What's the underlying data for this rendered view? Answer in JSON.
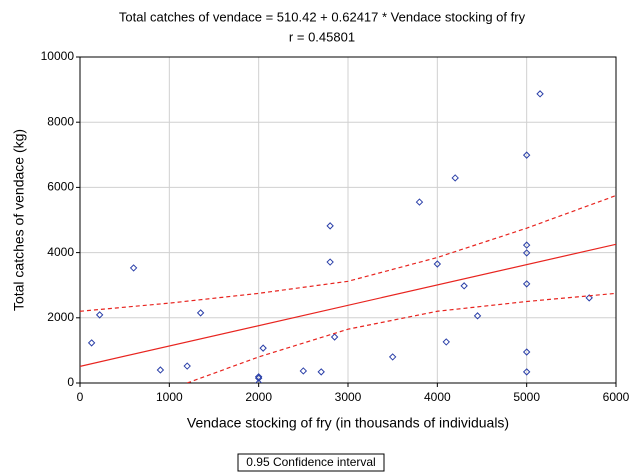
{
  "chart_data": {
    "type": "scatter",
    "title": "Total catches of vendace = 510.42 + 0.62417 * Vendace stocking of fry",
    "subtitle": "r =  0.45801",
    "x_label": "Vendace stocking of fry (in thousands of individuals)",
    "y_label": "Total catches of vendace (kg)",
    "legend": "0.95 Confidence interval",
    "xlim": [
      0,
      6000
    ],
    "ylim": [
      0,
      10000
    ],
    "xticks": [
      0,
      1000,
      2000,
      3000,
      4000,
      5000,
      6000
    ],
    "yticks": [
      0,
      2000,
      4000,
      6000,
      8000,
      10000
    ],
    "grid": true,
    "series": [
      {
        "kind": "points",
        "marker": "diamond",
        "color": "#2a3fa8",
        "x": [
          130,
          220,
          600,
          900,
          1200,
          1350,
          2000,
          2000,
          2000,
          2050,
          2500,
          2700,
          2800,
          2800,
          2850,
          3500,
          3800,
          4000,
          4300,
          4200,
          4100,
          4450,
          5000,
          5000,
          5000,
          5000,
          5000,
          5000,
          5150,
          5700
        ],
        "values": [
          1230,
          2090,
          3530,
          400,
          520,
          2150,
          190,
          150,
          0,
          1070,
          370,
          340,
          4820,
          3710,
          1410,
          800,
          5550,
          3650,
          2980,
          6290,
          1260,
          2060,
          6990,
          4230,
          3990,
          3040,
          950,
          340,
          8870,
          2610
        ]
      },
      {
        "kind": "line",
        "dash": "solid",
        "color": "#e8241f",
        "x": [
          0,
          6000
        ],
        "values": [
          510.42,
          4255.44
        ]
      },
      {
        "kind": "line",
        "dash": "dashed",
        "color": "#e8241f",
        "x": [
          0,
          1000,
          2000,
          3000,
          4000,
          5000,
          6000
        ],
        "values": [
          2200,
          2450,
          2750,
          3120,
          3850,
          4750,
          5750
        ]
      },
      {
        "kind": "line",
        "dash": "dashed",
        "color": "#e8241f",
        "x": [
          1200,
          2000,
          3000,
          4000,
          5000,
          6000
        ],
        "values": [
          0,
          800,
          1650,
          2200,
          2500,
          2750
        ]
      }
    ]
  }
}
